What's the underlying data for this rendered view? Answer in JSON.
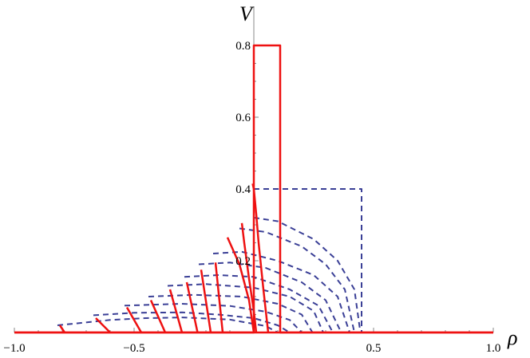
{
  "chart_data": {
    "type": "line",
    "title": "",
    "xlabel": "ρ",
    "ylabel": "V",
    "xlim": [
      -1.0,
      1.0
    ],
    "ylim": [
      0,
      0.8
    ],
    "x_ticks": [
      {
        "value": -1.0,
        "label": "−1.0"
      },
      {
        "value": -0.5,
        "label": "−0.5"
      },
      {
        "value": 0.5,
        "label": "0.5"
      },
      {
        "value": 1.0,
        "label": "1.0"
      }
    ],
    "y_ticks": [
      {
        "value": 0.2,
        "label": "0.2"
      },
      {
        "value": 0.4,
        "label": "0.4"
      },
      {
        "value": 0.6,
        "label": "0.6"
      },
      {
        "value": 0.8,
        "label": "0.8"
      }
    ],
    "grid": false,
    "legend": "none",
    "colors": {
      "solid": "#ee1111",
      "dashed": "#3a3f96",
      "axis": "#888888"
    },
    "series": [
      {
        "style": "solid",
        "curves": [
          {
            "x": [
              -1.0,
              0.0,
              0.0,
              0.11,
              0.11,
              1.0
            ],
            "y": [
              0,
              0,
              0.8,
              0.8,
              0,
              0
            ]
          },
          {
            "x": [
              -1.0,
              1.0
            ],
            "y": [
              0,
              0
            ]
          },
          {
            "x": [
              -0.81,
              -0.79
            ],
            "y": [
              0.02,
              0
            ]
          },
          {
            "x": [
              -0.66,
              -0.6
            ],
            "y": [
              0.04,
              0
            ]
          },
          {
            "x": [
              -0.53,
              -0.47
            ],
            "y": [
              0.07,
              0
            ]
          },
          {
            "x": [
              -0.43,
              -0.37
            ],
            "y": [
              0.09,
              0
            ]
          },
          {
            "x": [
              -0.35,
              -0.3
            ],
            "y": [
              0.12,
              0
            ]
          },
          {
            "x": [
              -0.28,
              -0.235
            ],
            "y": [
              0.14,
              0
            ]
          },
          {
            "x": [
              -0.22,
              -0.18
            ],
            "y": [
              0.175,
              0
            ]
          },
          {
            "x": [
              -0.16,
              -0.13
            ],
            "y": [
              0.195,
              0
            ]
          },
          {
            "x": [
              -0.11,
              -0.06,
              -0.02,
              0.0
            ],
            "y": [
              0.265,
              0.19,
              0.09,
              0
            ]
          },
          {
            "x": [
              -0.05,
              -0.04,
              -0.02,
              0.0,
              0.01
            ],
            "y": [
              0.305,
              0.25,
              0.15,
              0.06,
              0
            ]
          },
          {
            "x": [
              -0.005,
              0.0,
              0.01,
              0.02,
              0.04,
              0.06
            ],
            "y": [
              0.415,
              0.4,
              0.33,
              0.25,
              0.12,
              0
            ]
          }
        ]
      },
      {
        "style": "dashed",
        "curves": [
          {
            "x": [
              0.0,
              0.45,
              0.45
            ],
            "y": [
              0.4,
              0.4,
              0
            ]
          },
          {
            "x": [
              -0.82,
              -0.6,
              -0.45,
              -0.3,
              -0.1,
              0.05,
              0.1
            ],
            "y": [
              0.02,
              0.035,
              0.04,
              0.042,
              0.036,
              0.018,
              0
            ]
          },
          {
            "x": [
              -0.67,
              -0.5,
              -0.3,
              -0.15,
              0.0,
              0.1,
              0.15
            ],
            "y": [
              0.048,
              0.055,
              0.056,
              0.05,
              0.04,
              0.02,
              0
            ]
          },
          {
            "x": [
              -0.54,
              -0.3,
              -0.1,
              0.05,
              0.15,
              0.2
            ],
            "y": [
              0.075,
              0.08,
              0.074,
              0.058,
              0.035,
              0
            ]
          },
          {
            "x": [
              -0.44,
              -0.25,
              -0.05,
              0.1,
              0.2,
              0.245
            ],
            "y": [
              0.1,
              0.105,
              0.1,
              0.08,
              0.05,
              0
            ]
          },
          {
            "x": [
              -0.36,
              -0.2,
              0.0,
              0.15,
              0.25,
              0.29
            ],
            "y": [
              0.13,
              0.135,
              0.125,
              0.1,
              0.06,
              0
            ]
          },
          {
            "x": [
              -0.29,
              -0.15,
              0.0,
              0.15,
              0.27,
              0.33
            ],
            "y": [
              0.155,
              0.16,
              0.155,
              0.12,
              0.075,
              0
            ]
          },
          {
            "x": [
              -0.23,
              -0.1,
              0.05,
              0.2,
              0.3,
              0.365
            ],
            "y": [
              0.19,
              0.195,
              0.18,
              0.14,
              0.09,
              0
            ]
          },
          {
            "x": [
              -0.17,
              -0.05,
              0.1,
              0.25,
              0.35,
              0.4
            ],
            "y": [
              0.22,
              0.225,
              0.2,
              0.16,
              0.1,
              0
            ]
          },
          {
            "x": [
              -0.06,
              0.05,
              0.2,
              0.3,
              0.38,
              0.42
            ],
            "y": [
              0.29,
              0.28,
              0.24,
              0.19,
              0.12,
              0
            ]
          },
          {
            "x": [
              0.0,
              0.1,
              0.25,
              0.35,
              0.42,
              0.445
            ],
            "y": [
              0.32,
              0.31,
              0.26,
              0.2,
              0.12,
              0
            ]
          }
        ]
      }
    ]
  }
}
